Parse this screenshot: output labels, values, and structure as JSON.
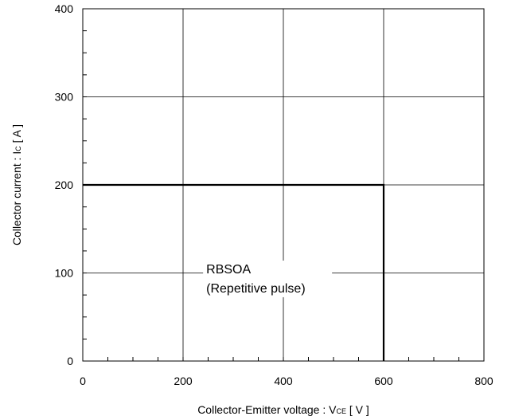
{
  "chart_data": {
    "type": "line",
    "title": "",
    "xlabel": {
      "main": "Collector-Emitter voltage  :  V",
      "sub": "CE",
      "unit": " [ V ]"
    },
    "ylabel": {
      "main": "Collector current : I",
      "sub": "C",
      "unit": " [ A ]"
    },
    "xlim": [
      0,
      800
    ],
    "ylim": [
      0,
      400
    ],
    "x_ticks": [
      0,
      200,
      400,
      600,
      800
    ],
    "y_ticks": [
      0,
      100,
      200,
      300,
      400
    ],
    "x_tick_labels": [
      "0",
      "200",
      "400",
      "600",
      "800"
    ],
    "y_tick_labels": [
      "0",
      "100",
      "200",
      "300",
      "400"
    ],
    "x_minor_step": 50,
    "y_minor_step": 25,
    "grid": true,
    "series": [
      {
        "x": [
          0,
          600,
          600
        ],
        "y": [
          200,
          200,
          0
        ],
        "color": "#000000"
      }
    ],
    "annotation": {
      "line1": "RBSOA",
      "line2": "(Repetitive pulse)",
      "x": 205,
      "y": 105
    }
  }
}
